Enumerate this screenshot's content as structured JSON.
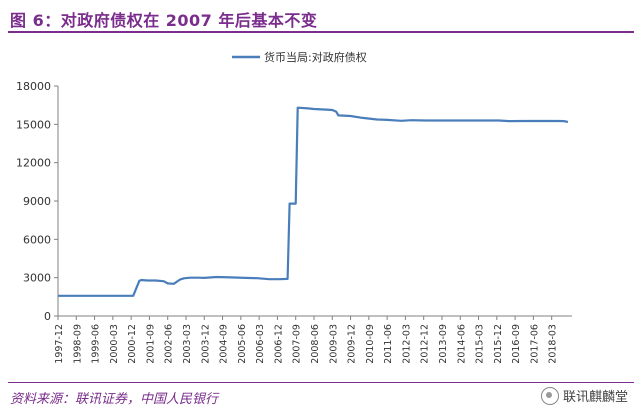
{
  "figure": {
    "title": "图 6：对政府债权在 2007 年后基本不变",
    "source": "资料来源：联讯证券，中国人民银行",
    "watermark": "联讯麒麟堂"
  },
  "colors": {
    "accent": "#7a2d8c",
    "line": "#4a7ebb",
    "axis": "#808080"
  },
  "chart_data": {
    "type": "line",
    "title": "",
    "xlabel": "",
    "ylabel": "",
    "ylim": [
      0,
      18000
    ],
    "yticks": [
      0,
      3000,
      6000,
      9000,
      12000,
      15000,
      18000
    ],
    "ytick_labels": [
      "0",
      "3000",
      "6000",
      "9000",
      "12000",
      "15000",
      "18000"
    ],
    "xlim": [
      "1997-12",
      "2019-01"
    ],
    "xtick_labels": [
      "1997-12",
      "1998-09",
      "1999-06",
      "2000-03",
      "2000-12",
      "2001-09",
      "2002-06",
      "2003-03",
      "2003-12",
      "2004-09",
      "2005-06",
      "2006-03",
      "2006-12",
      "2007-09",
      "2008-06",
      "2009-03",
      "2009-12",
      "2010-09",
      "2011-06",
      "2012-03",
      "2012-12",
      "2013-09",
      "2014-06",
      "2015-03",
      "2015-12",
      "2016-09",
      "2017-06",
      "2018-03"
    ],
    "grid": false,
    "legend": {
      "position": "top-center"
    },
    "series": [
      {
        "name": "货币当局:对政府债权",
        "x": [
          "1997-12",
          "1998-06",
          "1999-01",
          "1999-06",
          "2000-01",
          "2000-06",
          "2001-01",
          "2001-04",
          "2001-05",
          "2001-08",
          "2001-12",
          "2002-04",
          "2002-06",
          "2002-09",
          "2002-12",
          "2003-02",
          "2003-05",
          "2003-09",
          "2003-12",
          "2004-06",
          "2005-01",
          "2005-08",
          "2006-02",
          "2006-08",
          "2007-01",
          "2007-05",
          "2007-06",
          "2007-09",
          "2007-10",
          "2008-03",
          "2008-06",
          "2008-12",
          "2009-03",
          "2009-05",
          "2009-06",
          "2009-12",
          "2010-06",
          "2011-01",
          "2011-06",
          "2012-01",
          "2012-06",
          "2013-01",
          "2014-01",
          "2015-01",
          "2016-01",
          "2016-06",
          "2017-01",
          "2018-01",
          "2018-06",
          "2018-09",
          "2018-11"
        ],
        "values": [
          1580,
          1580,
          1580,
          1580,
          1580,
          1580,
          1580,
          2750,
          2820,
          2780,
          2780,
          2720,
          2550,
          2520,
          2850,
          2950,
          3000,
          3000,
          2980,
          3050,
          3020,
          2980,
          2960,
          2880,
          2880,
          2900,
          8800,
          8800,
          16300,
          16250,
          16200,
          16150,
          16120,
          15980,
          15700,
          15650,
          15500,
          15380,
          15350,
          15280,
          15320,
          15300,
          15300,
          15300,
          15300,
          15250,
          15260,
          15260,
          15260,
          15250,
          15180
        ]
      }
    ]
  }
}
